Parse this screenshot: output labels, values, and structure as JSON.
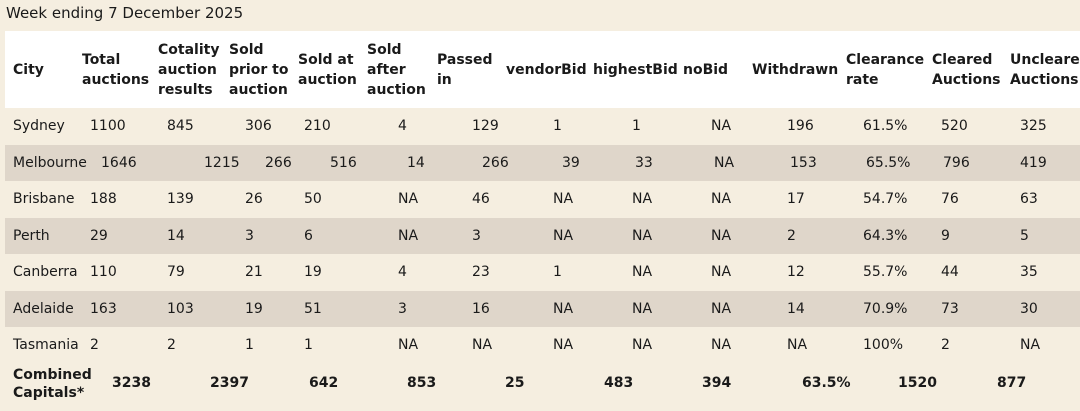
{
  "caption": "Week ending 7 December 2025",
  "headers": [
    "City",
    "Total\nauctions",
    "Cotality\nauction\nresults",
    "Sold\nprior to\nauction",
    "Sold at\nauction",
    "Sold\nafter\nauction",
    "Passed\nin",
    "vendorBid",
    "highestBid",
    "noBid",
    "Withdrawn",
    "Clearance\nrate",
    "Cleared\nAuctions",
    "Uncleared\nAuctions"
  ],
  "rows": [
    [
      "Sydney",
      "1100",
      "845",
      "306",
      "210",
      "4",
      "129",
      "1",
      "1",
      "NA",
      "196",
      "61.5%",
      "520",
      "325"
    ],
    [
      "Melbourne",
      "1646",
      "1215",
      "266",
      "516",
      "14",
      "266",
      "39",
      "33",
      "NA",
      "153",
      "65.5%",
      "796",
      "419"
    ],
    [
      "Brisbane",
      "188",
      "139",
      "26",
      "50",
      "NA",
      "46",
      "NA",
      "NA",
      "NA",
      "17",
      "54.7%",
      "76",
      "63"
    ],
    [
      "Perth",
      "29",
      "14",
      "3",
      "6",
      "NA",
      "3",
      "NA",
      "NA",
      "NA",
      "2",
      "64.3%",
      "9",
      "5"
    ],
    [
      "Canberra",
      "110",
      "79",
      "21",
      "19",
      "4",
      "23",
      "1",
      "NA",
      "NA",
      "12",
      "55.7%",
      "44",
      "35"
    ],
    [
      "Adelaide",
      "163",
      "103",
      "19",
      "51",
      "3",
      "16",
      "NA",
      "NA",
      "NA",
      "14",
      "70.9%",
      "73",
      "30"
    ],
    [
      "Tasmania",
      "2",
      "2",
      "1",
      "1",
      "NA",
      "NA",
      "NA",
      "NA",
      "NA",
      "NA",
      "100%",
      "2",
      "NA"
    ]
  ],
  "total": {
    "label": "Combined\nCapitals*",
    "values": [
      "3238",
      "2397",
      "642",
      "853",
      "25",
      "483",
      "394",
      "63.5%",
      "1520",
      "877"
    ]
  }
}
